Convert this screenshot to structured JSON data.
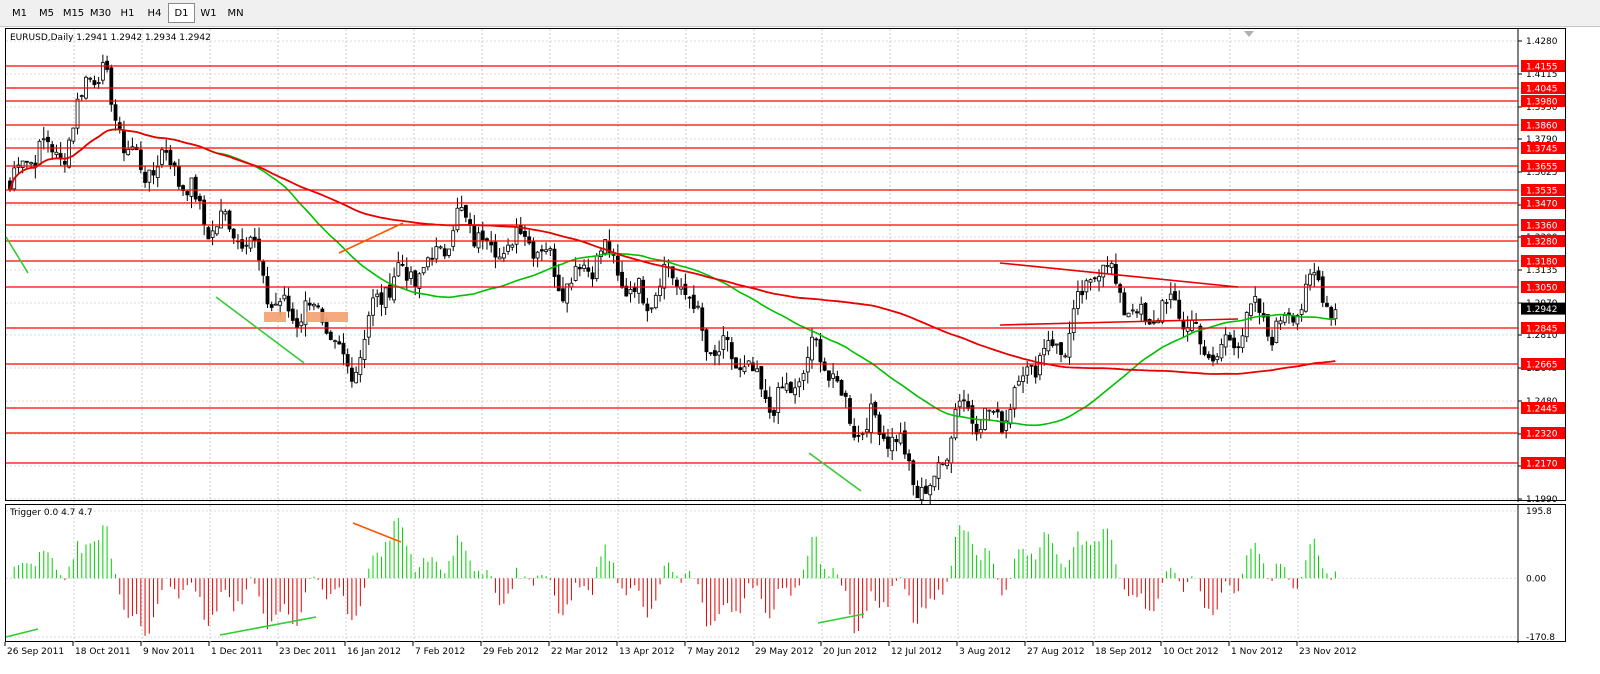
{
  "toolbar": {
    "timeframes": [
      {
        "label": "M1",
        "active": false
      },
      {
        "label": "M5",
        "active": false
      },
      {
        "label": "M15",
        "active": false
      },
      {
        "label": "M30",
        "active": false
      },
      {
        "label": "H1",
        "active": false
      },
      {
        "label": "H4",
        "active": false
      },
      {
        "label": "D1",
        "active": true
      },
      {
        "label": "W1",
        "active": false
      },
      {
        "label": "MN",
        "active": false
      }
    ]
  },
  "main_chart": {
    "info": "EURUSD,Daily  1.2941 1.2942 1.2934 1.2942",
    "current_price": "1.2942",
    "ylim": [
      1.199,
      1.428
    ],
    "axis_labels": [
      "1.4280",
      "1.4115",
      "1.3950",
      "1.3790",
      "1.3625",
      "1.3460",
      "1.3300",
      "1.3135",
      "1.2970",
      "1.2810",
      "1.2645",
      "1.2480",
      "1.2315",
      "1.2155",
      "1.1990"
    ],
    "levels": [
      "1.4155",
      "1.4045",
      "1.3980",
      "1.3860",
      "1.3745",
      "1.3655",
      "1.3535",
      "1.3470",
      "1.3360",
      "1.3280",
      "1.3180",
      "1.3050",
      "1.2845",
      "1.2665",
      "1.2445",
      "1.2320",
      "1.2170"
    ],
    "colors": {
      "level_line": "#ff0000",
      "level_tag": "#ff0000",
      "ma_fast": "#00c000",
      "ma_slow": "#e80000",
      "bull": "#00c000",
      "bear": "#000000"
    }
  },
  "indicator": {
    "info": "Trigger 0.0 4.7 4.7",
    "ylim": [
      -170.8,
      195.8
    ],
    "axis_labels": [
      "195.8",
      "0.00",
      "-170.8"
    ],
    "colors": {
      "positive": "#00d000",
      "negative": "#e00000"
    }
  },
  "x_axis": {
    "labels": [
      "26 Sep 2011",
      "18 Oct 2011",
      "9 Nov 2011",
      "1 Dec 2011",
      "23 Dec 2011",
      "16 Jan 2012",
      "7 Feb 2012",
      "29 Feb 2012",
      "22 Mar 2012",
      "13 Apr 2012",
      "7 May 2012",
      "29 May 2012",
      "20 Jun 2012",
      "12 Jul 2012",
      "3 Aug 2012",
      "27 Aug 2012",
      "18 Sep 2012",
      "10 Oct 2012",
      "1 Nov 2012",
      "23 Nov 2012"
    ]
  },
  "chart_data": {
    "type": "candlestick",
    "symbol": "EURUSD",
    "timeframe": "Daily",
    "last_bar": {
      "open": 1.2941,
      "high": 1.2942,
      "low": 1.2934,
      "close": 1.2942
    },
    "price_path": [
      [
        "26 Sep 2011",
        1.352
      ],
      [
        "18 Oct 2011",
        1.388
      ],
      [
        "21 Oct 2011",
        1.412
      ],
      [
        "9 Nov 2011",
        1.37
      ],
      [
        "1 Dec 2011",
        1.345
      ],
      [
        "23 Dec 2011",
        1.302
      ],
      [
        "16 Jan 2012",
        1.27
      ],
      [
        "7 Feb 2012",
        1.318
      ],
      [
        "29 Feb 2012",
        1.335
      ],
      [
        "22 Mar 2012",
        1.318
      ],
      [
        "13 Apr 2012",
        1.312
      ],
      [
        "7 May 2012",
        1.3
      ],
      [
        "29 May 2012",
        1.25
      ],
      [
        "20 Jun 2012",
        1.265
      ],
      [
        "12 Jul 2012",
        1.224
      ],
      [
        "24 Jul 2012",
        1.208
      ],
      [
        "3 Aug 2012",
        1.236
      ],
      [
        "27 Aug 2012",
        1.255
      ],
      [
        "18 Sep 2012",
        1.31
      ],
      [
        "10 Oct 2012",
        1.29
      ],
      [
        "1 Nov 2012",
        1.275
      ],
      [
        "23 Nov 2012",
        1.3
      ],
      [
        "5 Dec 2012",
        1.2942
      ]
    ]
  }
}
